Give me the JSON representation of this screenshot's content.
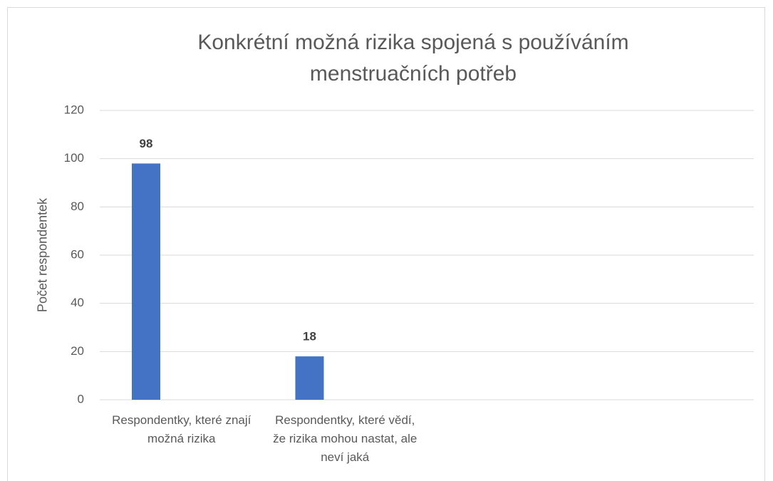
{
  "chart_data": {
    "type": "bar",
    "title": "Konkrétní možná rizika spojená s používáním menstruačních potřeb",
    "y_label": "Počet respondentek",
    "categories": [
      "Respondentky, které znají možná rizika",
      "Respondentky, které vědí, že rizika mohou nastat, ale neví jaká",
      null,
      null
    ],
    "values": [
      98,
      18,
      null,
      null
    ],
    "color": "#4472c4",
    "ylim": [
      0,
      120
    ],
    "yticks": [
      0,
      20,
      40,
      60,
      80,
      100,
      120
    ],
    "grid": true
  }
}
